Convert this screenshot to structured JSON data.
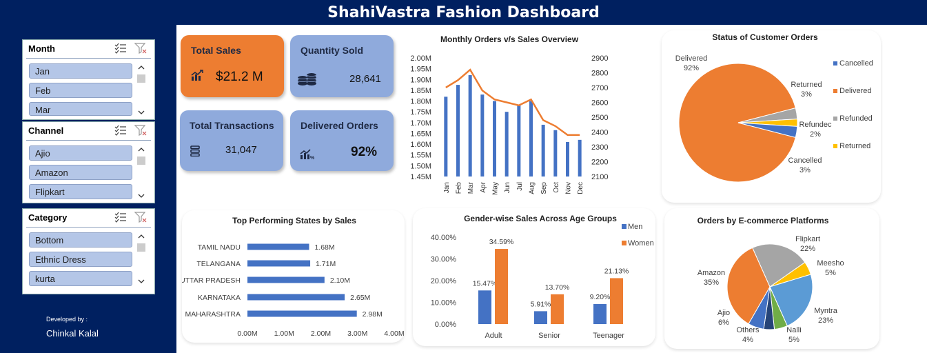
{
  "header": {
    "title": "ShahiVastra Fashion Dashboard"
  },
  "slicers": [
    {
      "title": "Month",
      "items": [
        "Jan",
        "Feb",
        "Mar"
      ]
    },
    {
      "title": "Channel",
      "items": [
        "Ajio",
        "Amazon",
        "Flipkart"
      ]
    },
    {
      "title": "Category",
      "items": [
        "Bottom",
        "Ethnic Dress",
        "kurta"
      ]
    }
  ],
  "kpis": {
    "total_sales": {
      "label": "Total Sales",
      "value": "$21.2 M"
    },
    "quantity_sold": {
      "label": "Quantity Sold",
      "value": "28,641"
    },
    "total_transactions": {
      "label": "Total Transactions",
      "value": "31,047"
    },
    "delivered_orders": {
      "label": "Delivered Orders",
      "value": "92%"
    }
  },
  "footer": {
    "developed_by": "Developed by :",
    "author": "Chinkal Kalal"
  },
  "colors": {
    "blue": "#4472C4",
    "orange": "#ED7D31",
    "grey": "#A5A5A5",
    "yellow": "#FFC000",
    "navy": "#002060"
  },
  "chart_data": [
    {
      "id": "monthly",
      "type": "bar",
      "title": "Monthly Orders v/s Sales Overview",
      "categories": [
        "Jan",
        "Feb",
        "Mar",
        "Apr",
        "May",
        "Jun",
        "Jul",
        "Aug",
        "Sep",
        "Oct",
        "Nov",
        "Dec"
      ],
      "series": [
        {
          "axis": "left",
          "type": "bar",
          "values": [
            1.82,
            1.875,
            1.92,
            1.83,
            1.8,
            1.75,
            1.78,
            1.8,
            1.69,
            1.665,
            1.61,
            1.62
          ]
        },
        {
          "axis": "right",
          "type": "line",
          "values": [
            2700,
            2750,
            2820,
            2680,
            2620,
            2600,
            2580,
            2620,
            2480,
            2440,
            2380,
            2380
          ]
        }
      ],
      "left_ticks": [
        "1.45M",
        "1.50M",
        "1.55M",
        "1.60M",
        "1.65M",
        "1.70M",
        "1.75M",
        "1.80M",
        "1.85M",
        "1.90M",
        "1.95M",
        "2.00M"
      ],
      "right_ticks": [
        "2100",
        "2200",
        "2300",
        "2400",
        "2500",
        "2600",
        "2700",
        "2800",
        "2900"
      ],
      "ylim_left": [
        1.45,
        2.0
      ],
      "ylim_right": [
        2100,
        2900
      ]
    },
    {
      "id": "status",
      "type": "pie",
      "title": "Status of Customer Orders",
      "slices": [
        {
          "label": "Delivered",
          "pct": "92%",
          "value": 92
        },
        {
          "label": "Returned",
          "pct": "3%",
          "value": 3
        },
        {
          "label": "Refunded",
          "label_shown": "Refundec",
          "pct": "2%",
          "value": 2
        },
        {
          "label": "Cancelled",
          "pct": "3%",
          "value": 3
        }
      ],
      "legend": [
        "Cancelled",
        "Delivered",
        "Refunded",
        "Returned"
      ],
      "legend_position": "right"
    },
    {
      "id": "states",
      "type": "bar",
      "orientation": "horizontal",
      "title": "Top Performing States by Sales",
      "categories": [
        "TAMIL NADU",
        "TELANGANA",
        "UTTAR PRADESH",
        "KARNATAKA",
        "MAHARASHTRA"
      ],
      "values": [
        1.68,
        1.71,
        2.1,
        2.65,
        2.98
      ],
      "value_labels": [
        "1.68M",
        "1.71M",
        "2.10M",
        "2.65M",
        "2.98M"
      ],
      "x_ticks": [
        "0.00M",
        "1.00M",
        "2.00M",
        "3.00M",
        "4.00M"
      ],
      "xlim": [
        0,
        4
      ]
    },
    {
      "id": "gender",
      "type": "bar",
      "title": "Gender-wise Sales Across Age Groups",
      "categories": [
        "Adult",
        "Senior",
        "Teenager"
      ],
      "series": [
        {
          "name": "Men",
          "values": [
            15.47,
            5.91,
            9.2
          ],
          "labels": [
            "15.47%",
            "5.91%",
            "9.20%"
          ]
        },
        {
          "name": "Women",
          "values": [
            34.59,
            13.7,
            21.13
          ],
          "labels": [
            "34.59%",
            "13.70%",
            "21.13%"
          ]
        }
      ],
      "y_ticks": [
        "0.00%",
        "10.00%",
        "20.00%",
        "30.00%",
        "40.00%"
      ],
      "ylim": [
        0,
        40
      ],
      "legend_position": "top-right"
    },
    {
      "id": "platforms",
      "type": "pie",
      "title": "Orders by E-commerce Platforms",
      "slices": [
        {
          "label": "Flipkart",
          "pct": "22%",
          "value": 22
        },
        {
          "label": "Meesho",
          "pct": "5%",
          "value": 5
        },
        {
          "label": "Myntra",
          "pct": "23%",
          "value": 23
        },
        {
          "label": "Nalli",
          "pct": "5%",
          "value": 5
        },
        {
          "label": "Others",
          "pct": "4%",
          "value": 4
        },
        {
          "label": "Ajio",
          "pct": "6%",
          "value": 6
        },
        {
          "label": "Amazon",
          "pct": "35%",
          "value": 35
        }
      ]
    }
  ]
}
